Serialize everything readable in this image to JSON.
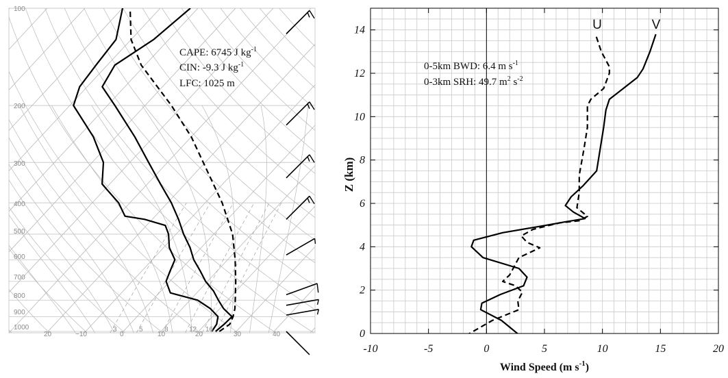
{
  "chart_data": [
    {
      "type": "skew-t",
      "pressure_ticks": [
        "100",
        "200",
        "300",
        "400",
        "500",
        "600",
        "700",
        "800",
        "900",
        "1000"
      ],
      "temperature_ticks": [
        "20",
        "−10",
        "0",
        "10",
        "20",
        "30",
        "40"
      ],
      "mixing_ratio_ticks": [
        "3",
        "5",
        "8",
        "12",
        "16"
      ],
      "annotations": [
        "CAPE: 6745 J kg",
        "CIN: -9.3 J kg",
        "LFC: 1025 m"
      ],
      "annotation_superscripts": [
        "-1",
        "-1"
      ],
      "series": [
        {
          "style": "solid",
          "role": "temperature",
          "points": [
            [
              1000,
              24.5
            ],
            [
              950,
              25.0
            ],
            [
              900,
              25.2
            ],
            [
              850,
              21.0
            ],
            [
              800,
              17.5
            ],
            [
              750,
              14.0
            ],
            [
              700,
              9.5
            ],
            [
              650,
              5.5
            ],
            [
              600,
              1.0
            ],
            [
              550,
              -3.0
            ],
            [
              500,
              -8.0
            ],
            [
              450,
              -13.0
            ],
            [
              400,
              -19.0
            ],
            [
              350,
              -26.5
            ],
            [
              300,
              -35.0
            ],
            [
              250,
              -45.0
            ],
            [
              200,
              -58.0
            ],
            [
              175,
              -66.0
            ],
            [
              150,
              -68.0
            ],
            [
              125,
              -64.0
            ],
            [
              100,
              -62.0
            ]
          ]
        },
        {
          "style": "solid",
          "role": "dewpoint",
          "points": [
            [
              1000,
              23.5
            ],
            [
              950,
              23.0
            ],
            [
              900,
              21.5
            ],
            [
              850,
              17.5
            ],
            [
              800,
              12.0
            ],
            [
              760,
              3.0
            ],
            [
              700,
              -1.0
            ],
            [
              650,
              -2.5
            ],
            [
              600,
              -4.0
            ],
            [
              550,
              -8.5
            ],
            [
              500,
              -12.0
            ],
            [
              470,
              -15.0
            ],
            [
              450,
              -22.0
            ],
            [
              440,
              -28.0
            ],
            [
              400,
              -33.0
            ],
            [
              350,
              -42.0
            ],
            [
              300,
              -47.0
            ],
            [
              250,
              -56.0
            ],
            [
              200,
              -69.0
            ],
            [
              175,
              -72.0
            ],
            [
              150,
              -73.0
            ],
            [
              125,
              -74.0
            ],
            [
              100,
              -80.0
            ]
          ]
        },
        {
          "style": "dashed",
          "role": "parcel",
          "points": [
            [
              1000,
              25.5
            ],
            [
              950,
              26.5
            ],
            [
              900,
              25.5
            ],
            [
              850,
              24.0
            ],
            [
              800,
              22.0
            ],
            [
              700,
              17.5
            ],
            [
              600,
              12.0
            ],
            [
              500,
              5.0
            ],
            [
              400,
              -5.5
            ],
            [
              300,
              -20.5
            ],
            [
              250,
              -30.0
            ],
            [
              200,
              -43.0
            ],
            [
              150,
              -61.0
            ],
            [
              125,
              -70.0
            ],
            [
              100,
              -78.0
            ]
          ]
        }
      ],
      "wind_barbs": [
        {
          "p": 120,
          "speed_kt": 15,
          "dir": 225
        },
        {
          "p": 230,
          "speed_kt": 15,
          "dir": 225
        },
        {
          "p": 335,
          "speed_kt": 15,
          "dir": 225
        },
        {
          "p": 450,
          "speed_kt": 15,
          "dir": 225
        },
        {
          "p": 580,
          "speed_kt": 5,
          "dir": 240
        },
        {
          "p": 770,
          "speed_kt": 10,
          "dir": 250
        },
        {
          "p": 830,
          "speed_kt": 5,
          "dir": 260
        },
        {
          "p": 890,
          "speed_kt": 5,
          "dir": 260
        },
        {
          "p": 1000,
          "speed_kt": 0,
          "dir": 315
        }
      ]
    },
    {
      "type": "line",
      "xlabel": "Wind Speed (m s",
      "xlabel_sup": "-1",
      "xlabel_end": ")",
      "ylabel": "Z (km)",
      "xlim": [
        -10,
        20
      ],
      "ylim": [
        0,
        15
      ],
      "x_ticks": [
        "-10",
        "-5",
        "0",
        "5",
        "10",
        "15",
        "20"
      ],
      "y_ticks": [
        "0",
        "2",
        "4",
        "6",
        "8",
        "10",
        "12",
        "14"
      ],
      "grid": true,
      "annotations": [
        "0-5km BWD: 6.4 m s",
        "0-3km SRH: 49.7 m"
      ],
      "annotation_superscripts": [
        "-1",
        "2",
        " s",
        "-2"
      ],
      "series": [
        {
          "name": "U",
          "style": "dashed",
          "points": [
            [
              -1.8,
              -0.1
            ],
            [
              0.5,
              0.6
            ],
            [
              2.8,
              1.1
            ],
            [
              2.7,
              1.5
            ],
            [
              3.1,
              1.9
            ],
            [
              2.5,
              2.2
            ],
            [
              1.4,
              2.4
            ],
            [
              2.0,
              2.7
            ],
            [
              2.3,
              3.0
            ],
            [
              2.8,
              3.5
            ],
            [
              4.6,
              3.95
            ],
            [
              3.5,
              4.2
            ],
            [
              3.0,
              4.5
            ],
            [
              4.0,
              4.8
            ],
            [
              6.3,
              5.1
            ],
            [
              8.0,
              5.2
            ],
            [
              8.7,
              5.4
            ],
            [
              7.8,
              5.8
            ],
            [
              8.0,
              6.5
            ],
            [
              8.0,
              7.3
            ],
            [
              8.4,
              8.5
            ],
            [
              8.7,
              9.5
            ],
            [
              8.7,
              10.5
            ],
            [
              9.0,
              10.8
            ],
            [
              10.1,
              11.3
            ],
            [
              10.6,
              12.0
            ],
            [
              10.6,
              12.3
            ],
            [
              9.9,
              13.0
            ],
            [
              9.4,
              13.8
            ]
          ]
        },
        {
          "name": "V",
          "style": "solid",
          "points": [
            [
              2.9,
              -0.1
            ],
            [
              1.3,
              0.6
            ],
            [
              -0.5,
              1.1
            ],
            [
              -0.4,
              1.4
            ],
            [
              1.2,
              1.8
            ],
            [
              3.2,
              2.2
            ],
            [
              3.5,
              2.6
            ],
            [
              2.8,
              3.0
            ],
            [
              -0.3,
              3.5
            ],
            [
              -1.3,
              4.0
            ],
            [
              -1.1,
              4.3
            ],
            [
              1.4,
              4.65
            ],
            [
              4.7,
              4.95
            ],
            [
              6.8,
              5.15
            ],
            [
              8.5,
              5.3
            ],
            [
              7.5,
              5.6
            ],
            [
              6.8,
              5.9
            ],
            [
              7.3,
              6.3
            ],
            [
              8.3,
              6.8
            ],
            [
              9.5,
              7.5
            ],
            [
              9.8,
              8.5
            ],
            [
              10.1,
              9.5
            ],
            [
              10.3,
              10.3
            ],
            [
              10.6,
              10.8
            ],
            [
              13.0,
              11.8
            ],
            [
              13.5,
              12.2
            ],
            [
              14.1,
              13.0
            ],
            [
              14.6,
              13.8
            ]
          ]
        }
      ]
    }
  ]
}
